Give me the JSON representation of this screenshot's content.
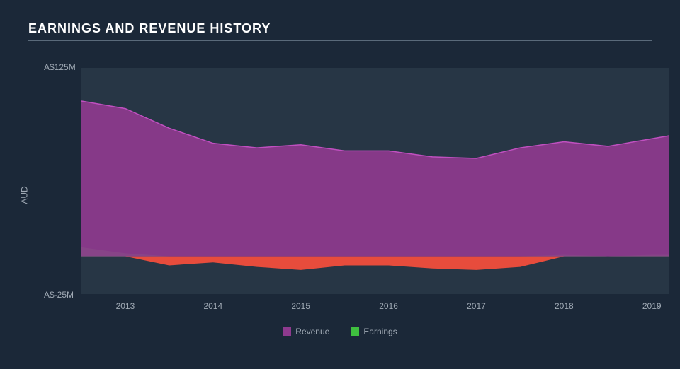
{
  "title": "EARNINGS AND REVENUE HISTORY",
  "chart": {
    "type": "area",
    "background_color": "#1b2838",
    "plot_background_color": "#273645",
    "text_color": "#a0aab5",
    "title_color": "#ffffff",
    "rule_color": "#5a6a7a",
    "ylabel": "AUD",
    "ylim": [
      -25,
      125
    ],
    "yticks": [
      {
        "value": 125,
        "label": "A$125M"
      },
      {
        "value": -25,
        "label": "A$-25M"
      }
    ],
    "xlim": [
      2012.5,
      2019.2
    ],
    "xticks": [
      2013,
      2014,
      2015,
      2016,
      2017,
      2018,
      2019
    ],
    "x": [
      2012.5,
      2013,
      2013.5,
      2014,
      2014.5,
      2015,
      2015.5,
      2016,
      2016.5,
      2017,
      2017.5,
      2018,
      2018.5,
      2019,
      2019.2
    ],
    "series": [
      {
        "name": "Earnings",
        "legend_label": "Earnings",
        "values": [
          6,
          2,
          -6,
          -4,
          -7,
          -9,
          -6,
          -6,
          -8,
          -9,
          -7,
          1,
          0,
          1,
          1
        ],
        "fill_positive": "#3fbf3f",
        "fill_negative": "#e74c3c",
        "stroke": "none"
      },
      {
        "name": "Revenue",
        "legend_label": "Revenue",
        "values": [
          103,
          98,
          85,
          75,
          72,
          74,
          70,
          70,
          66,
          65,
          72,
          76,
          73,
          78,
          80
        ],
        "fill_positive": "#8e3a8e",
        "fill_negative": "#8e3a8e",
        "stroke": "#c050c0"
      }
    ],
    "legend_position": "bottom-center",
    "title_fontsize": 18,
    "tick_fontsize": 12
  }
}
